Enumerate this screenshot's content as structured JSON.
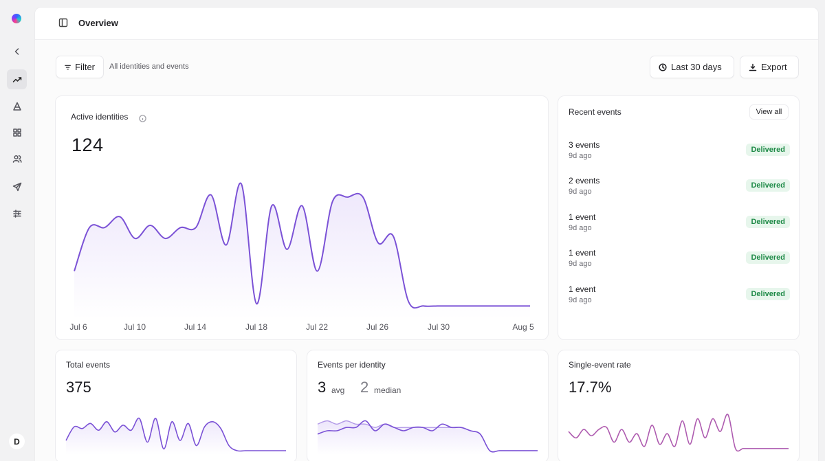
{
  "header": {
    "title": "Overview"
  },
  "filters": {
    "filter_label": "Filter",
    "scope": "All identities and events",
    "range_label": "Last 30 days",
    "export_label": "Export"
  },
  "sidebar": {
    "avatar_initial": "D"
  },
  "active_identities": {
    "label": "Active identities",
    "value": "124",
    "x_ticks": [
      "Jul 6",
      "Jul 10",
      "Jul 14",
      "Jul 18",
      "Jul 22",
      "Jul 26",
      "Jul 30",
      "Aug 5"
    ]
  },
  "recent_events": {
    "title": "Recent events",
    "view_all": "View all",
    "items": [
      {
        "title": "3 events",
        "time": "9d ago",
        "status": "Delivered"
      },
      {
        "title": "2 events",
        "time": "9d ago",
        "status": "Delivered"
      },
      {
        "title": "1 event",
        "time": "9d ago",
        "status": "Delivered"
      },
      {
        "title": "1 event",
        "time": "9d ago",
        "status": "Delivered"
      },
      {
        "title": "1 event",
        "time": "9d ago",
        "status": "Delivered"
      }
    ]
  },
  "total_events": {
    "label": "Total events",
    "value": "375"
  },
  "events_per_identity": {
    "label": "Events per identity",
    "avg_value": "3",
    "avg_label": "avg",
    "median_value": "2",
    "median_label": "median"
  },
  "single_event_rate": {
    "label": "Single-event rate",
    "value": "17.7%"
  },
  "colors": {
    "accent": "#7b52d6",
    "accent_fill": "#ece5fb",
    "success_bg": "#e7f6ec",
    "success_text": "#1e8a47",
    "rate_line": "#d0679a"
  },
  "chart_data": [
    {
      "type": "area",
      "x": [
        1,
        2,
        3,
        4,
        5,
        6,
        7,
        8,
        9,
        10,
        11,
        12,
        13,
        14,
        15,
        16,
        17,
        18,
        19,
        20,
        21,
        22,
        23,
        24,
        25,
        26,
        27,
        28,
        29,
        30,
        31
      ],
      "values": [
        70,
        90,
        90,
        95,
        85,
        91,
        85,
        90,
        90,
        105,
        82,
        110,
        55,
        100,
        80,
        100,
        70,
        102,
        104,
        104,
        83,
        86,
        56,
        54,
        54,
        54,
        54,
        54,
        54,
        54,
        54
      ],
      "ylim": [
        50,
        115
      ]
    },
    {
      "type": "area",
      "values": [
        6,
        14,
        13,
        16,
        12,
        17,
        11,
        15,
        12,
        19,
        5,
        19,
        1,
        17,
        6,
        16,
        3,
        14,
        17,
        13,
        3,
        0,
        0,
        0,
        0,
        0,
        0,
        0
      ],
      "ylim": [
        0,
        25
      ]
    },
    {
      "type": "line",
      "values": [
        [
          5,
          8
        ],
        [
          6,
          9
        ],
        [
          6,
          8
        ],
        [
          7,
          9
        ],
        [
          7,
          8
        ],
        [
          9,
          8
        ],
        [
          6,
          7
        ],
        [
          8,
          8
        ],
        [
          7,
          7
        ],
        [
          6,
          7
        ],
        [
          7,
          7
        ],
        [
          7,
          7
        ],
        [
          6,
          7
        ],
        [
          8,
          7
        ],
        [
          7,
          7
        ],
        [
          7,
          7
        ],
        [
          6,
          6
        ],
        [
          5,
          5
        ],
        [
          0,
          0
        ],
        [
          0,
          0
        ],
        [
          0,
          0
        ],
        [
          0,
          0
        ],
        [
          0,
          0
        ],
        [
          0,
          0
        ]
      ],
      "ylim": [
        0,
        12
      ]
    },
    {
      "type": "line",
      "values": [
        9,
        6,
        10,
        7,
        10,
        11,
        4,
        10,
        4,
        8,
        2,
        12,
        3,
        8,
        2,
        14,
        3,
        15,
        6,
        15,
        9,
        17,
        1,
        1,
        1,
        1,
        1,
        1,
        1,
        1
      ],
      "ylim": [
        0,
        20
      ]
    }
  ]
}
